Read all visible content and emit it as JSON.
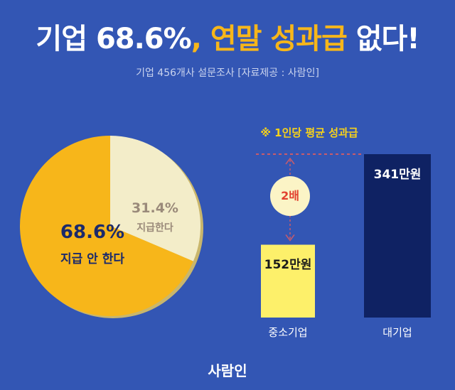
{
  "header": {
    "title_part1": "기업 68.6%",
    "title_dot": ",",
    "title_accent": "연말 성과급",
    "title_part2": "없다!",
    "subtitle": "기업 456개사 설문조사 [자료제공 : 사람인]"
  },
  "chart_data": [
    {
      "type": "pie",
      "slices": [
        {
          "label": "지급 안 한다",
          "value": 68.6,
          "display": "68.6%",
          "color": "#f7b61a"
        },
        {
          "label": "지급한다",
          "value": 31.4,
          "display": "31.4%",
          "color": "#f3edc9"
        }
      ]
    },
    {
      "type": "bar",
      "note": "※ 1인당 평균 성과급",
      "categories": [
        "중소기업",
        "대기업"
      ],
      "values": [
        152,
        341
      ],
      "value_labels": [
        "152만원",
        "341만원"
      ],
      "colors": [
        "#fdf06a",
        "#0f2263"
      ],
      "ratio_label": "2배"
    }
  ],
  "footer": {
    "brand": "사람인"
  }
}
